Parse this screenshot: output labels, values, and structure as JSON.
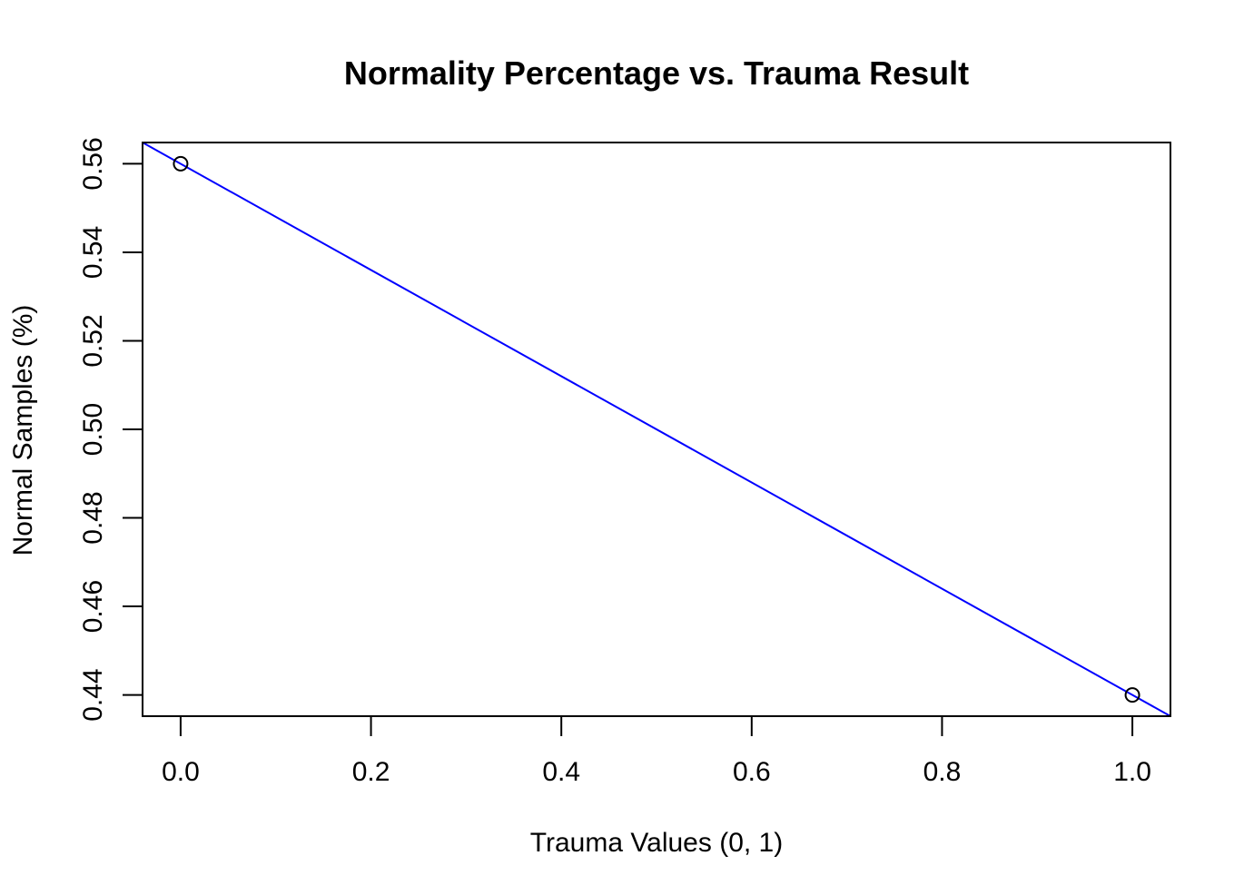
{
  "chart_data": {
    "type": "scatter",
    "title": "Normality Percentage vs. Trauma Result",
    "xlabel": "Trauma Values (0, 1)",
    "ylabel": "Normal Samples (%)",
    "xlim": [
      -0.04,
      1.04
    ],
    "ylim": [
      0.4352,
      0.5648
    ],
    "x_ticks": [
      0.0,
      0.2,
      0.4,
      0.6,
      0.8,
      1.0
    ],
    "x_tick_labels": [
      "0.0",
      "0.2",
      "0.4",
      "0.6",
      "0.8",
      "1.0"
    ],
    "y_ticks": [
      0.44,
      0.46,
      0.48,
      0.5,
      0.52,
      0.54,
      0.56
    ],
    "y_tick_labels": [
      "0.44",
      "0.46",
      "0.48",
      "0.50",
      "0.52",
      "0.54",
      "0.56"
    ],
    "grid": false,
    "series": [
      {
        "marker": "open-circle",
        "color": "#000000",
        "points": [
          {
            "x": 0,
            "y": 0.56
          },
          {
            "x": 1,
            "y": 0.44
          }
        ]
      }
    ],
    "fit_line": {
      "kind": "regression",
      "color": "#0000ff",
      "intercept": 0.56,
      "slope": -0.12
    }
  }
}
